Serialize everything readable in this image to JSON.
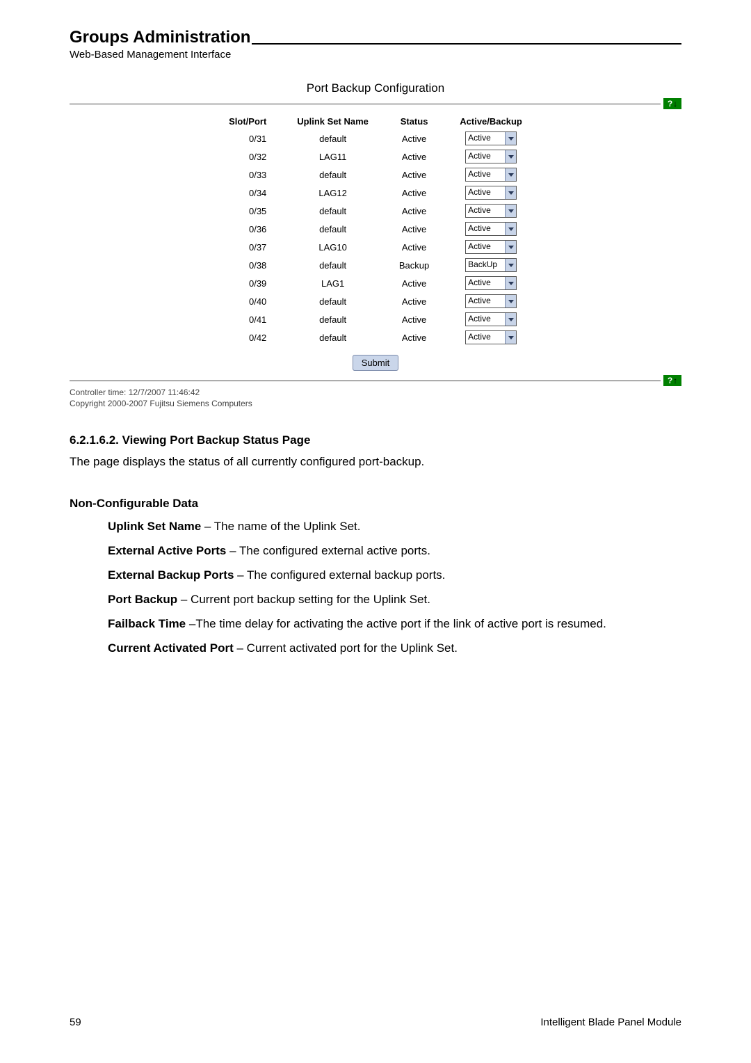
{
  "header": {
    "title": "Groups Administration",
    "subtitle": "Web-Based Management Interface"
  },
  "screenshot": {
    "title": "Port Backup Configuration",
    "columns": [
      "Slot/Port",
      "Uplink Set Name",
      "Status",
      "Active/Backup"
    ],
    "rows": [
      {
        "slot": "0/31",
        "uplink": "default",
        "status": "Active",
        "dropdown": "Active"
      },
      {
        "slot": "0/32",
        "uplink": "LAG11",
        "status": "Active",
        "dropdown": "Active"
      },
      {
        "slot": "0/33",
        "uplink": "default",
        "status": "Active",
        "dropdown": "Active"
      },
      {
        "slot": "0/34",
        "uplink": "LAG12",
        "status": "Active",
        "dropdown": "Active"
      },
      {
        "slot": "0/35",
        "uplink": "default",
        "status": "Active",
        "dropdown": "Active"
      },
      {
        "slot": "0/36",
        "uplink": "default",
        "status": "Active",
        "dropdown": "Active"
      },
      {
        "slot": "0/37",
        "uplink": "LAG10",
        "status": "Active",
        "dropdown": "Active"
      },
      {
        "slot": "0/38",
        "uplink": "default",
        "status": "Backup",
        "dropdown": "BackUp"
      },
      {
        "slot": "0/39",
        "uplink": "LAG1",
        "status": "Active",
        "dropdown": "Active"
      },
      {
        "slot": "0/40",
        "uplink": "default",
        "status": "Active",
        "dropdown": "Active"
      },
      {
        "slot": "0/41",
        "uplink": "default",
        "status": "Active",
        "dropdown": "Active"
      },
      {
        "slot": "0/42",
        "uplink": "default",
        "status": "Active",
        "dropdown": "Active"
      }
    ],
    "submit_label": "Submit",
    "controller_time": "Controller time: 12/7/2007 11:46:42",
    "copyright": "Copyright 2000-2007 Fujitsu Siemens Computers",
    "badge_q": "?",
    "badge_down": "↓",
    "badge_up": "↑"
  },
  "section": {
    "number_title": "6.2.1.6.2. Viewing Port Backup Status Page",
    "intro": "The page displays the status of all currently configured port-backup.",
    "noncfg_heading": "Non-Configurable Data",
    "defs": [
      {
        "term": "Uplink Set Name",
        "sep": " – ",
        "desc": "The name of the Uplink Set."
      },
      {
        "term": "External Active Ports",
        "sep": " – ",
        "desc": "The configured external active ports."
      },
      {
        "term": "External Backup Ports",
        "sep": " – ",
        "desc": "The configured external backup ports."
      },
      {
        "term": "Port Backup",
        "sep": " – ",
        "desc": "Current port backup setting for the Uplink Set."
      },
      {
        "term": "Failback Time",
        "sep": " –",
        "desc": "The time delay for activating the active port if the link of active port is resumed."
      },
      {
        "term": "Current Activated Port",
        "sep": " – ",
        "desc": "Current activated port for the Uplink Set."
      }
    ]
  },
  "footer": {
    "page": "59",
    "product": "Intelligent Blade Panel Module"
  }
}
